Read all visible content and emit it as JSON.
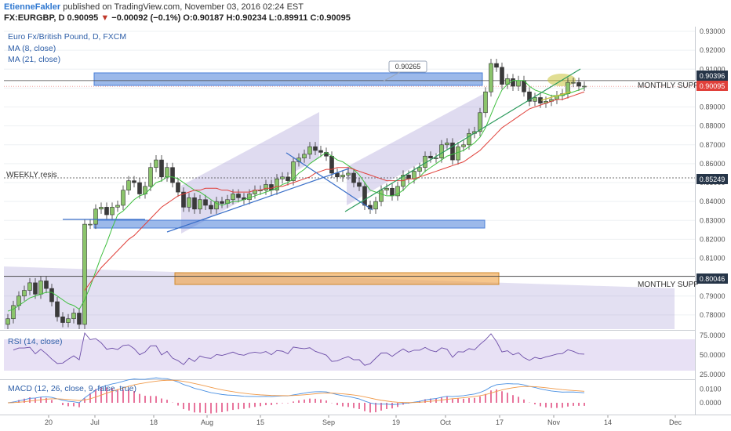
{
  "header": {
    "author": "EtienneFakler",
    "published": "published on TradingView.com, November 03, 2016 02:24 EST",
    "symbol": "FX:EURGBP, D",
    "last": "0.90095",
    "change_arrow": "▼",
    "change": "−0.00092 (−0.1%)",
    "ohlc": "O:0.90187 H:0.90234 L:0.89911 C:0.90095"
  },
  "legend": {
    "title": "Euro Fx/British Pound, D, FXCM",
    "ma8": "MA (8, close)",
    "ma21": "MA (21, close)",
    "rsi": "RSI (14, close)",
    "macd": "MACD (12, 26, close, 9, false, true)"
  },
  "annotations": {
    "weekly_resis": "WEEKLY resis",
    "monthly_supp_top": "MONTHLY SUPP",
    "monthly_supp_bottom": "MONTHLY SUPP",
    "callout": "0.90265"
  },
  "price_tags": {
    "level_top": "0.90396",
    "last": "0.90095",
    "weekly": "0.85249",
    "monthly_low": "0.80046"
  },
  "colors": {
    "up": "#8bc46b",
    "down": "#3a3a3a",
    "ma8": "#3fbf3f",
    "ma21": "#e0403a",
    "zone_blue": "#4a7fd8",
    "zone_orange": "#f0a040",
    "channel": "#9b8fd0",
    "rsi_line": "#6c4da8",
    "rsi_band": "#d8cdef",
    "macd_line": "#4a90e2",
    "signal_line": "#f09a4a",
    "hist": "#e0457a",
    "tag_last": "#e0403a",
    "tag_level": "#263548"
  },
  "chart_data": {
    "type": "candlestick",
    "x_ticks": [
      "20",
      "Jul",
      "18",
      "Aug",
      "15",
      "Sep",
      "19",
      "Oct",
      "17",
      "Nov",
      "14",
      "Dec"
    ],
    "y_ticks": [
      "0.93000",
      "0.92000",
      "0.91000",
      "0.90000",
      "0.89000",
      "0.88000",
      "0.87000",
      "0.86000",
      "0.85000",
      "0.84000",
      "0.83000",
      "0.82000",
      "0.81000",
      "0.80000",
      "0.79000",
      "0.78000"
    ],
    "ylim": [
      0.7725,
      0.9325
    ],
    "close": [
      0.778,
      0.785,
      0.79,
      0.793,
      0.797,
      0.791,
      0.798,
      0.794,
      0.787,
      0.779,
      0.776,
      0.778,
      0.781,
      0.775,
      0.828,
      0.828,
      0.836,
      0.837,
      0.833,
      0.837,
      0.838,
      0.846,
      0.851,
      0.85,
      0.844,
      0.848,
      0.858,
      0.862,
      0.853,
      0.858,
      0.85,
      0.845,
      0.837,
      0.842,
      0.836,
      0.841,
      0.838,
      0.836,
      0.84,
      0.839,
      0.841,
      0.844,
      0.842,
      0.841,
      0.844,
      0.846,
      0.846,
      0.849,
      0.846,
      0.852,
      0.853,
      0.851,
      0.861,
      0.863,
      0.865,
      0.869,
      0.867,
      0.866,
      0.864,
      0.855,
      0.853,
      0.854,
      0.855,
      0.85,
      0.848,
      0.838,
      0.836,
      0.84,
      0.846,
      0.847,
      0.843,
      0.848,
      0.854,
      0.852,
      0.856,
      0.858,
      0.864,
      0.863,
      0.863,
      0.87,
      0.871,
      0.862,
      0.869,
      0.87,
      0.876,
      0.877,
      0.887,
      0.898,
      0.913,
      0.911,
      0.902,
      0.905,
      0.901,
      0.904,
      0.898,
      0.893,
      0.895,
      0.892,
      0.893,
      0.894,
      0.896,
      0.897,
      0.903,
      0.903,
      0.901,
      0.901
    ],
    "ma8": [
      0.782,
      0.783,
      0.785,
      0.787,
      0.789,
      0.79,
      0.791,
      0.792,
      0.792,
      0.79,
      0.788,
      0.786,
      0.785,
      0.783,
      0.788,
      0.795,
      0.803,
      0.811,
      0.818,
      0.826,
      0.833,
      0.835,
      0.838,
      0.841,
      0.843,
      0.844,
      0.847,
      0.85,
      0.851,
      0.853,
      0.853,
      0.852,
      0.85,
      0.848,
      0.846,
      0.845,
      0.843,
      0.841,
      0.839,
      0.838,
      0.839,
      0.84,
      0.84,
      0.841,
      0.842,
      0.843,
      0.844,
      0.845,
      0.846,
      0.847,
      0.849,
      0.85,
      0.852,
      0.855,
      0.857,
      0.86,
      0.862,
      0.864,
      0.866,
      0.864,
      0.862,
      0.861,
      0.859,
      0.857,
      0.854,
      0.85,
      0.846,
      0.845,
      0.844,
      0.843,
      0.843,
      0.844,
      0.846,
      0.849,
      0.851,
      0.853,
      0.856,
      0.858,
      0.86,
      0.862,
      0.864,
      0.865,
      0.866,
      0.867,
      0.869,
      0.871,
      0.874,
      0.879,
      0.886,
      0.893,
      0.899,
      0.902,
      0.904,
      0.904,
      0.904,
      0.901,
      0.899,
      0.898,
      0.897,
      0.896,
      0.896,
      0.896,
      0.897,
      0.898,
      0.899,
      0.9
    ],
    "ma21": [
      null,
      null,
      null,
      null,
      null,
      null,
      null,
      null,
      null,
      null,
      null,
      null,
      null,
      null,
      0.793,
      0.797,
      0.801,
      0.805,
      0.808,
      0.811,
      0.814,
      0.817,
      0.82,
      0.822,
      0.825,
      0.828,
      0.831,
      0.834,
      0.837,
      0.839,
      0.841,
      0.843,
      0.844,
      0.845,
      0.846,
      0.846,
      0.847,
      0.847,
      0.847,
      0.846,
      0.846,
      0.845,
      0.845,
      0.845,
      0.845,
      0.846,
      0.846,
      0.847,
      0.847,
      0.848,
      0.848,
      0.849,
      0.85,
      0.851,
      0.852,
      0.853,
      0.855,
      0.856,
      0.857,
      0.857,
      0.858,
      0.858,
      0.858,
      0.857,
      0.856,
      0.855,
      0.854,
      0.853,
      0.852,
      0.851,
      0.851,
      0.851,
      0.851,
      0.852,
      0.852,
      0.853,
      0.854,
      0.855,
      0.856,
      0.857,
      0.858,
      0.859,
      0.86,
      0.861,
      0.863,
      0.865,
      0.867,
      0.87,
      0.873,
      0.876,
      0.879,
      0.881,
      0.883,
      0.885,
      0.887,
      0.889,
      0.89,
      0.891,
      0.892,
      0.893,
      0.894,
      0.894,
      0.895,
      0.896,
      0.897,
      0.898
    ],
    "rsi_ticks": [
      "75.0000",
      "50.0000",
      "25.0000"
    ],
    "rsi_ylim": [
      20,
      80
    ],
    "macd_ticks": [
      "0.0100",
      "0.0000"
    ],
    "macd_ylim": [
      -0.008,
      0.016
    ]
  }
}
